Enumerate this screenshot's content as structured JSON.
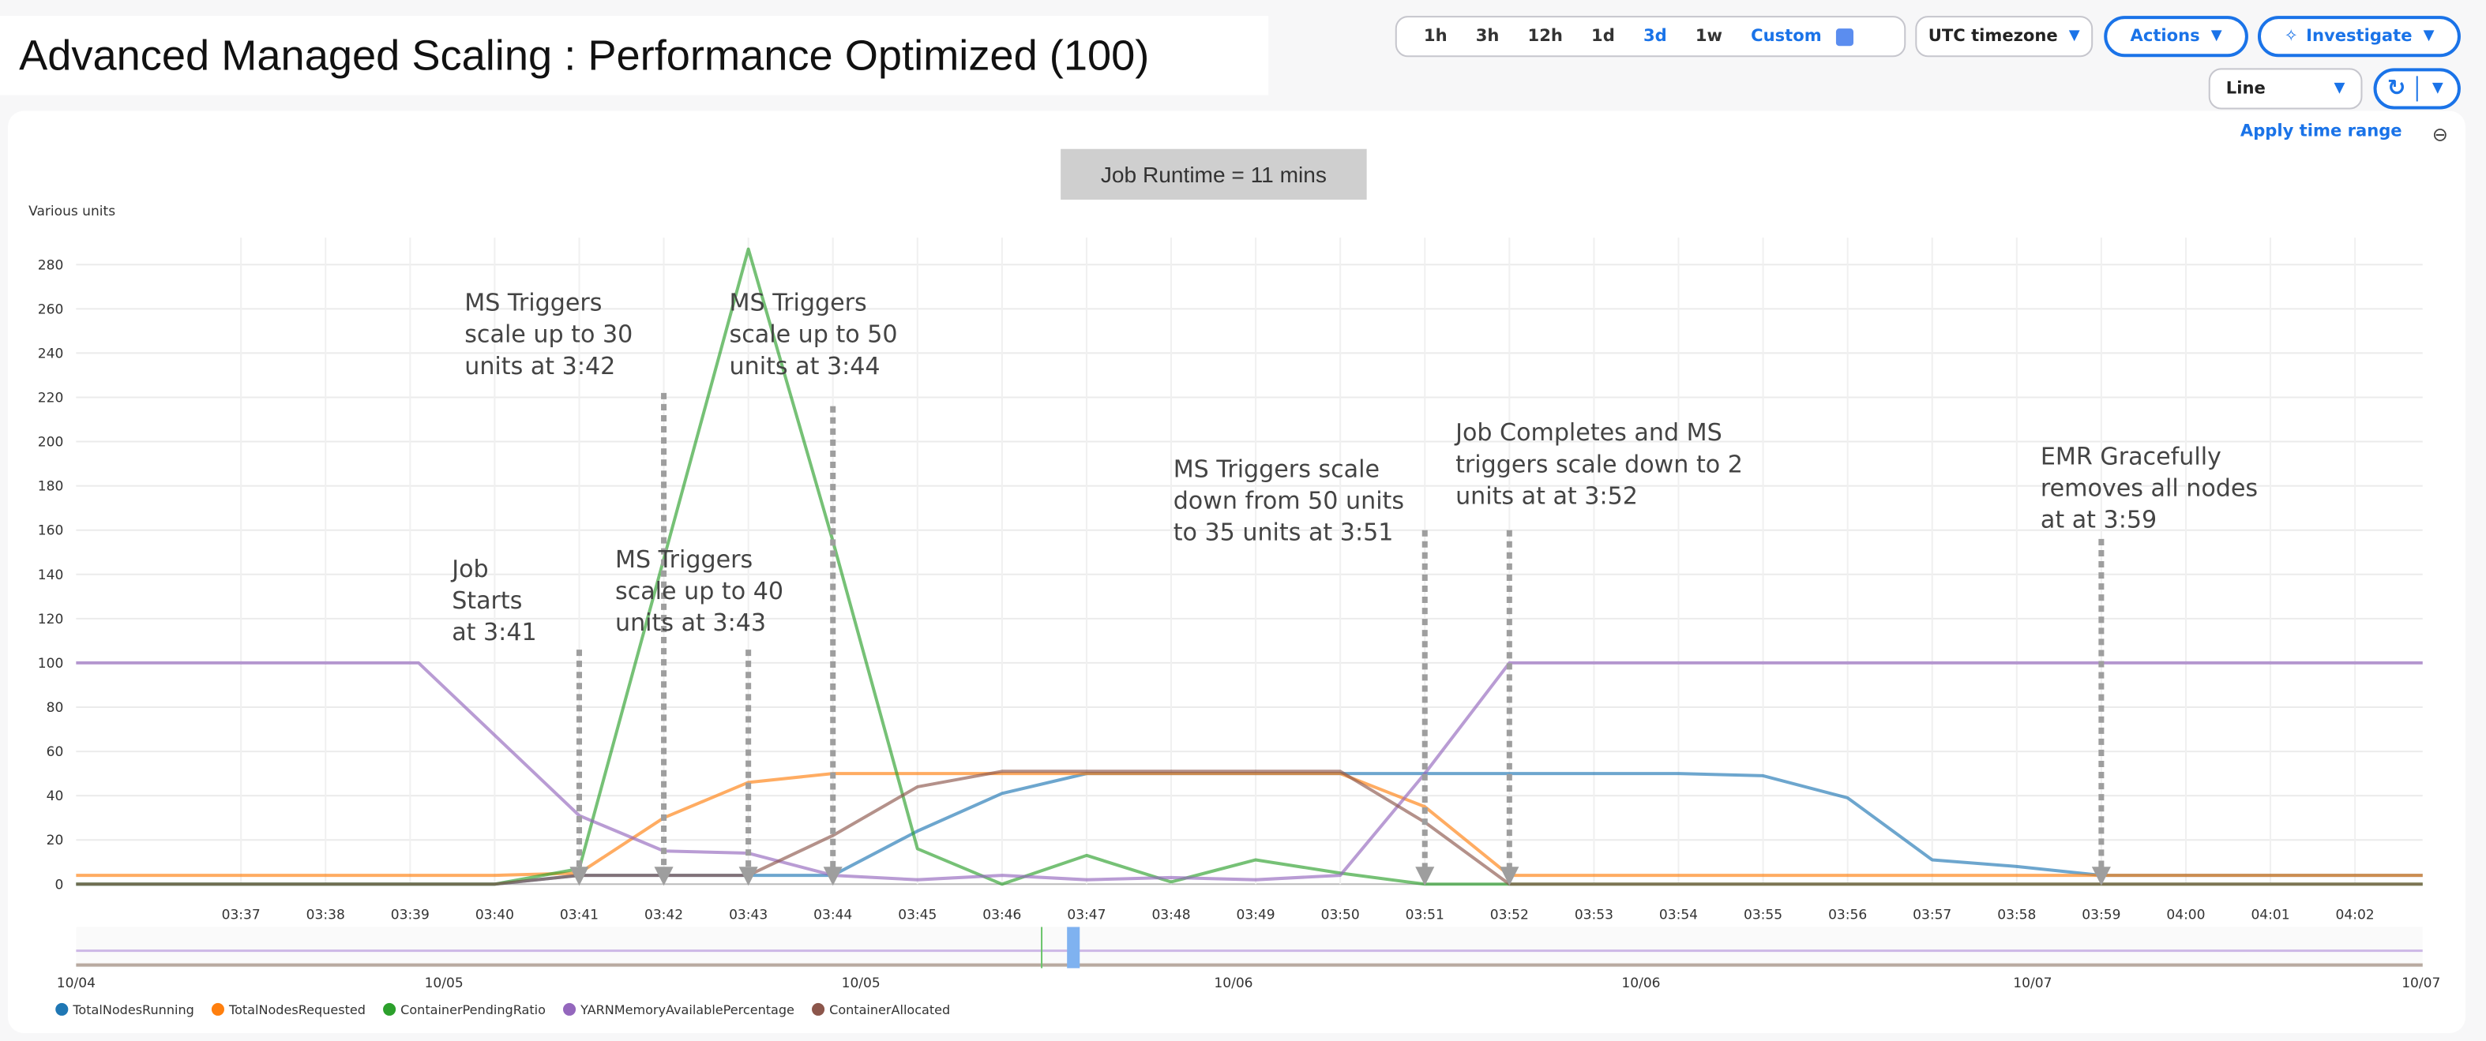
{
  "title": "Advanced Managed Scaling : Performance Optimized (100)",
  "toolbar": {
    "time_ranges": [
      "1h",
      "3h",
      "12h",
      "1d",
      "3d",
      "1w"
    ],
    "selected_range": "3d",
    "custom_label": "Custom",
    "timezone_label": "UTC timezone",
    "actions_label": "Actions",
    "investigate_label": "Investigate",
    "chart_type_label": "Line",
    "apply_time_range": "Apply time range"
  },
  "runtime_label": "Job Runtime = 11 mins",
  "chart_data": {
    "type": "line",
    "ylabel": "Various units",
    "ylim": [
      0,
      292
    ],
    "yticks": [
      0,
      20,
      40,
      60,
      80,
      100,
      120,
      140,
      160,
      180,
      200,
      220,
      240,
      260,
      280
    ],
    "xlim_minutes_after_0300": [
      35.05,
      62.8
    ],
    "xtick_labels": [
      "03:37",
      "03:38",
      "03:39",
      "03:40",
      "03:41",
      "03:42",
      "03:43",
      "03:44",
      "03:45",
      "03:46",
      "03:47",
      "03:48",
      "03:49",
      "03:50",
      "03:51",
      "03:52",
      "03:53",
      "03:54",
      "03:55",
      "03:56",
      "03:57",
      "03:58",
      "03:59",
      "04:00",
      "04:01",
      "04:02"
    ],
    "grid": true,
    "legend_position": "bottom-left",
    "series": [
      {
        "name": "TotalNodesRunning",
        "color": "#1f77b4",
        "points": [
          [
            35.05,
            0
          ],
          [
            40,
            0
          ],
          [
            41,
            4
          ],
          [
            42,
            4
          ],
          [
            43,
            4
          ],
          [
            44,
            4
          ],
          [
            45,
            24
          ],
          [
            46,
            41
          ],
          [
            47,
            50
          ],
          [
            48,
            50
          ],
          [
            49,
            50
          ],
          [
            50,
            50
          ],
          [
            51,
            50
          ],
          [
            52,
            50
          ],
          [
            53,
            50
          ],
          [
            54,
            50
          ],
          [
            55,
            49
          ],
          [
            56,
            39
          ],
          [
            57,
            11
          ],
          [
            58,
            8
          ],
          [
            59,
            4
          ],
          [
            60,
            4
          ],
          [
            61,
            4
          ],
          [
            62,
            4
          ],
          [
            62.8,
            4
          ]
        ]
      },
      {
        "name": "TotalNodesRequested",
        "color": "#ff7f0e",
        "points": [
          [
            35.05,
            4
          ],
          [
            40,
            4
          ],
          [
            41,
            5
          ],
          [
            42,
            30
          ],
          [
            43,
            46
          ],
          [
            44,
            50
          ],
          [
            45,
            50
          ],
          [
            46,
            50
          ],
          [
            47,
            50
          ],
          [
            48,
            50
          ],
          [
            49,
            50
          ],
          [
            50,
            50
          ],
          [
            51,
            35
          ],
          [
            52,
            4
          ],
          [
            53,
            4
          ],
          [
            62.8,
            4
          ]
        ]
      },
      {
        "name": "ContainerPendingRatio",
        "color": "#2ca02c",
        "points": [
          [
            35.05,
            0
          ],
          [
            40,
            0
          ],
          [
            41,
            7
          ],
          [
            42,
            147
          ],
          [
            43,
            287
          ],
          [
            44,
            155
          ],
          [
            45,
            16
          ],
          [
            46,
            0
          ],
          [
            47,
            13
          ],
          [
            48,
            1
          ],
          [
            49,
            11
          ],
          [
            50,
            5
          ],
          [
            51,
            0
          ],
          [
            52,
            0
          ],
          [
            62.8,
            0
          ]
        ]
      },
      {
        "name": "YARNMemoryAvailablePercentage",
        "color": "#9467bd",
        "points": [
          [
            35.05,
            100
          ],
          [
            39.1,
            100
          ],
          [
            41,
            31
          ],
          [
            42,
            15
          ],
          [
            43,
            14
          ],
          [
            44,
            4
          ],
          [
            45,
            2
          ],
          [
            46,
            4
          ],
          [
            47,
            2
          ],
          [
            48,
            3
          ],
          [
            49,
            2
          ],
          [
            50,
            4
          ],
          [
            51,
            50
          ],
          [
            52,
            100
          ],
          [
            53,
            100
          ],
          [
            62.8,
            100
          ]
        ]
      },
      {
        "name": "ContainerAllocated",
        "color": "#8c564b",
        "points": [
          [
            35.05,
            0
          ],
          [
            40,
            0
          ],
          [
            41,
            4
          ],
          [
            42,
            4
          ],
          [
            43,
            4
          ],
          [
            44,
            22
          ],
          [
            45,
            44
          ],
          [
            46,
            51
          ],
          [
            47,
            51
          ],
          [
            48,
            51
          ],
          [
            49,
            51
          ],
          [
            50,
            51
          ],
          [
            51,
            28
          ],
          [
            52,
            0
          ],
          [
            62.8,
            0
          ]
        ]
      }
    ],
    "annotations": [
      {
        "minute": 41,
        "lines": [
          "Job",
          "Starts",
          "at 3:41"
        ]
      },
      {
        "minute": 42,
        "lines": [
          "MS Triggers",
          "scale up to 30",
          "units at 3:42"
        ]
      },
      {
        "minute": 43,
        "lines": [
          "MS Triggers",
          "scale up to 40",
          "units at 3:43"
        ]
      },
      {
        "minute": 44,
        "lines": [
          "MS Triggers",
          "scale up to 50",
          "units at 3:44"
        ]
      },
      {
        "minute": 51,
        "lines": [
          "MS Triggers scale",
          "down from 50 units",
          "to 35 units at 3:51"
        ]
      },
      {
        "minute": 52,
        "lines": [
          "Job Completes and MS",
          "triggers scale down to 2",
          "units at at 3:52"
        ]
      },
      {
        "minute": 59,
        "lines": [
          "EMR Gracefully",
          "removes all nodes",
          "at at 3:59"
        ]
      }
    ],
    "overview_labels": [
      "10/04",
      "10/05",
      "10/05",
      "10/06",
      "10/06",
      "10/07",
      "10/07"
    ]
  }
}
